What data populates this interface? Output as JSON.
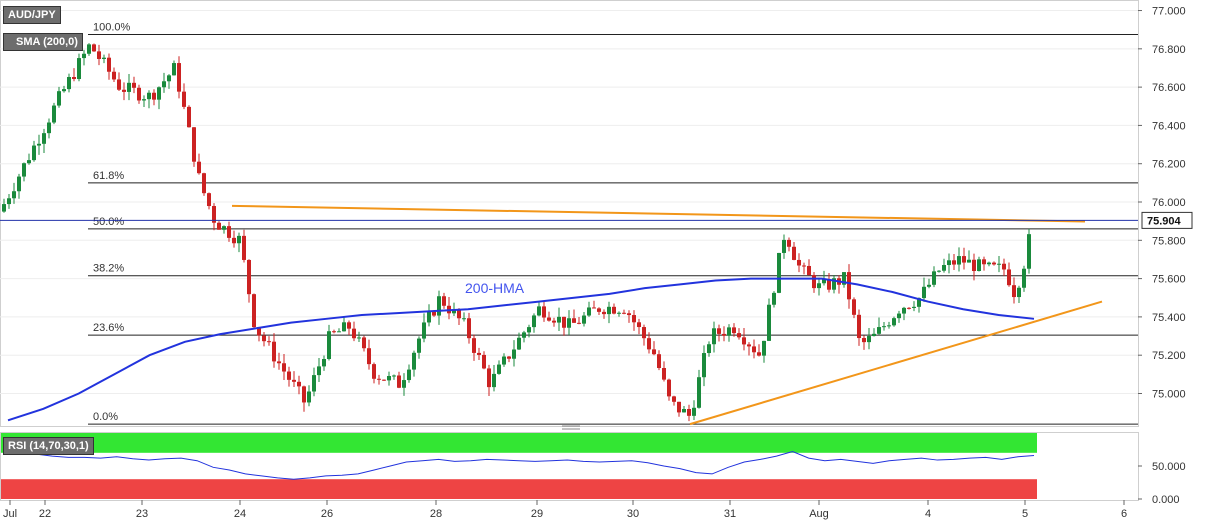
{
  "instrument": {
    "symbol": "AUD/JPY",
    "indicator": "SMA (200,0)"
  },
  "rsi_panel": {
    "label": "RSI (14,70,30,1)",
    "ticks": [
      "50.000",
      "0.000"
    ]
  },
  "price_tag": "75.904",
  "colors": {
    "bull": "#1a8a3c",
    "bear": "#cc2222",
    "hma": "#2233dd",
    "trend": "#f2961a",
    "fib": "#222222",
    "rsi_line": "#2233dd",
    "rsi_over": "#33e633",
    "rsi_under": "#ee4444",
    "price_line": "#2233aa"
  },
  "chart_data": {
    "type": "candlestick",
    "y_axis": {
      "ticks": [
        "77.000",
        "76.800",
        "76.600",
        "76.400",
        "76.200",
        "76.000",
        "75.800",
        "75.600",
        "75.400",
        "75.200",
        "75.000"
      ],
      "ylim": [
        74.825,
        77.055
      ]
    },
    "x_axis": {
      "ticks": [
        "Jul",
        "22",
        "23",
        "24",
        "26",
        "28",
        "29",
        "30",
        "31",
        "Aug",
        "4",
        "5",
        "6"
      ]
    },
    "fib_levels": [
      {
        "label": "100.0%",
        "value": 76.875
      },
      {
        "label": "61.8%",
        "value": 76.1
      },
      {
        "label": "50.0%",
        "value": 75.86
      },
      {
        "label": "38.2%",
        "value": 75.615
      },
      {
        "label": "23.6%",
        "value": 75.305
      },
      {
        "label": "0.0%",
        "value": 74.84
      }
    ],
    "hma_label": "200-HMA",
    "hma": [
      74.86,
      74.92,
      75.0,
      75.1,
      75.2,
      75.27,
      75.31,
      75.34,
      75.37,
      75.39,
      75.41,
      75.42,
      75.43,
      75.44,
      75.46,
      75.48,
      75.5,
      75.52,
      75.55,
      75.57,
      75.59,
      75.6,
      75.6,
      75.6,
      75.57,
      75.53,
      75.48,
      75.44,
      75.41,
      75.39
    ],
    "resistance": {
      "from": [
        "Jul 23 end",
        75.98
      ],
      "to": [
        "Aug 5 end",
        75.905
      ]
    },
    "support": {
      "from": [
        "Jul 30 end",
        74.84
      ],
      "to": [
        "Aug 5 end",
        75.48
      ]
    },
    "last_price": 75.904,
    "rsi": [
      70,
      69,
      68,
      65,
      63,
      63,
      62,
      64,
      61,
      59,
      61,
      62,
      58,
      48,
      44,
      38,
      35,
      32,
      30,
      32,
      35,
      36,
      38,
      44,
      50,
      56,
      58,
      60,
      57,
      58,
      60,
      59,
      58,
      57,
      58,
      59,
      57,
      56,
      57,
      58,
      55,
      50,
      46,
      40,
      38,
      48,
      56,
      60,
      65,
      72,
      62,
      58,
      60,
      57,
      54,
      58,
      60,
      62,
      59,
      60,
      62,
      63,
      60,
      64,
      66
    ]
  }
}
